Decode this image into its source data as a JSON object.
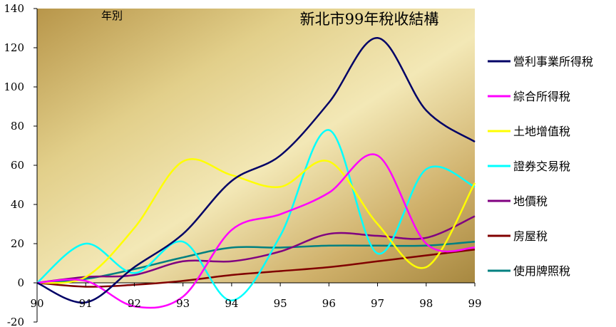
{
  "chart_data": {
    "type": "line",
    "title": "新北市99年稅收結構",
    "xlabel": "年別",
    "ylabel": "",
    "categories": [
      "90",
      "91",
      "92",
      "93",
      "94",
      "95",
      "96",
      "97",
      "98",
      "99"
    ],
    "ylim": [
      -20,
      140
    ],
    "yticks": [
      "-20",
      "0",
      "20",
      "40",
      "60",
      "80",
      "100",
      "120",
      "140"
    ],
    "legend_position": "right",
    "background": "gold gradient",
    "series": [
      {
        "name": "營利事業所得稅",
        "color": "#000066",
        "values": [
          0,
          -10,
          8,
          25,
          52,
          65,
          92,
          125,
          88,
          72
        ]
      },
      {
        "name": "綜合所得稅",
        "color": "#ff00ff",
        "values": [
          0,
          1,
          -12,
          -7,
          27,
          35,
          46,
          65,
          20,
          18
        ]
      },
      {
        "name": "土地增值稅",
        "color": "#ffff00",
        "values": [
          0,
          3,
          28,
          62,
          55,
          49,
          62,
          30,
          8,
          51
        ]
      },
      {
        "name": "證券交易稅",
        "color": "#00ffff",
        "values": [
          0,
          20,
          5,
          21,
          -9,
          24,
          78,
          15,
          58,
          49
        ]
      },
      {
        "name": "地價稅",
        "color": "#800080",
        "values": [
          0,
          3,
          4,
          11,
          11,
          16,
          25,
          24,
          23,
          34
        ]
      },
      {
        "name": "房屋稅",
        "color": "#800000",
        "values": [
          0,
          -2,
          -1,
          1,
          4,
          6,
          8,
          11,
          14,
          17
        ]
      },
      {
        "name": "使用牌照稅",
        "color": "#008080",
        "values": [
          0,
          2,
          7,
          13,
          18,
          18,
          19,
          19,
          19,
          21
        ]
      }
    ]
  }
}
